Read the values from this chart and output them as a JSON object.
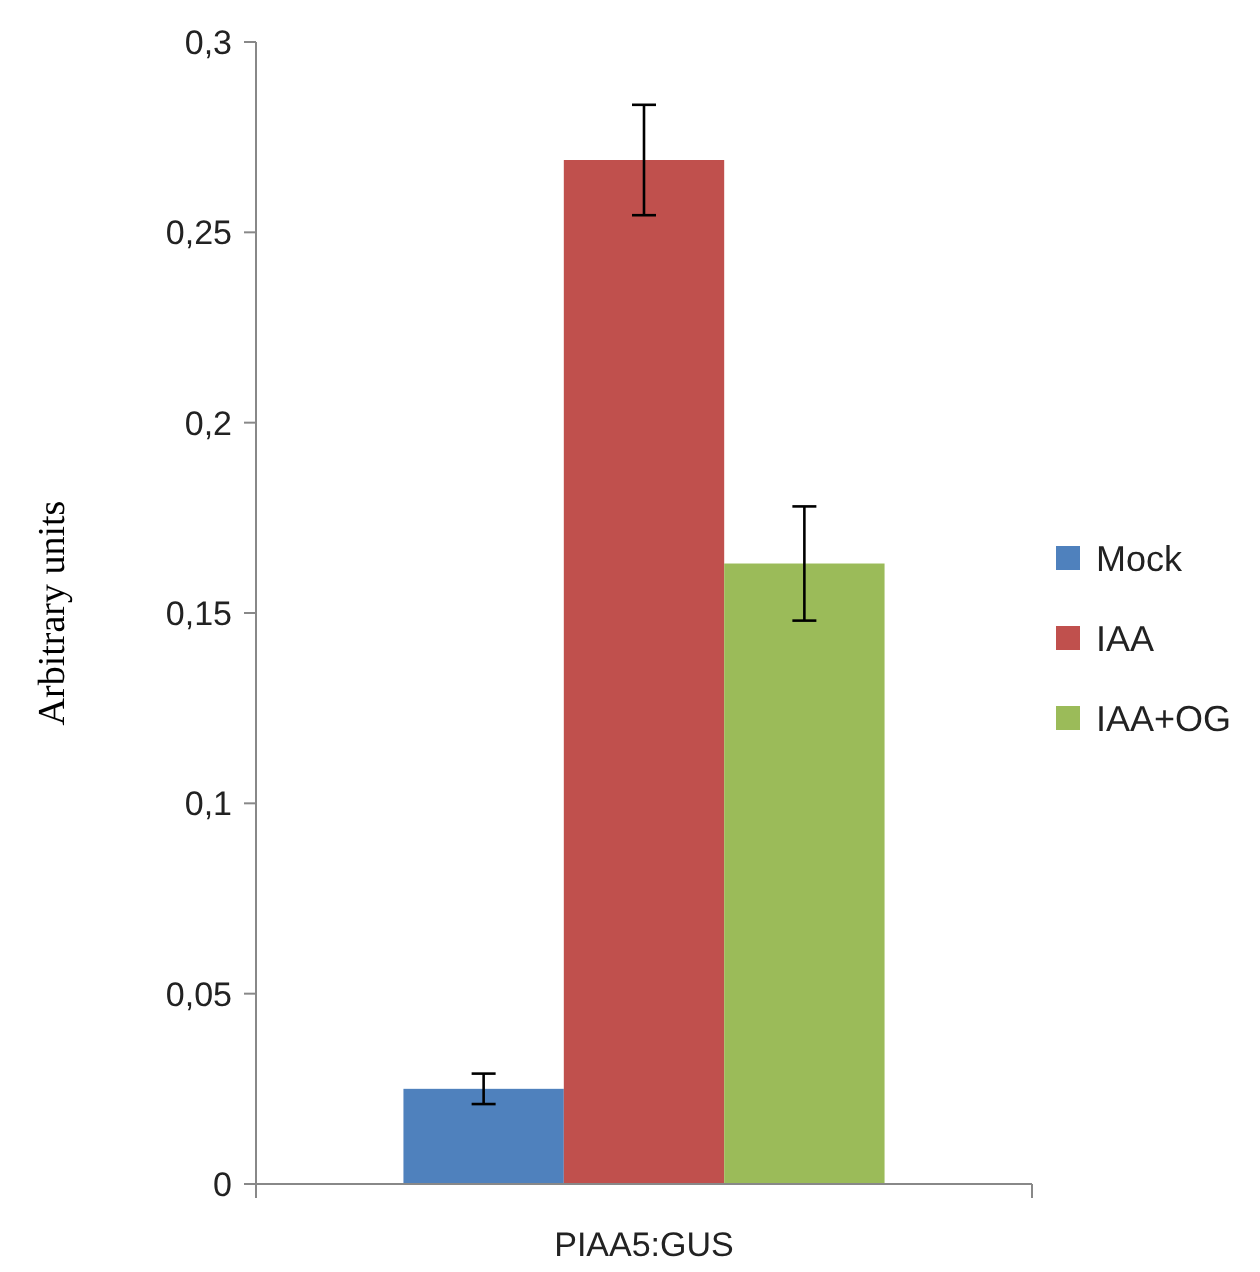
{
  "chart_data": {
    "type": "bar",
    "ylabel": "Arbitrary units",
    "categories": [
      "PIAA5:GUS"
    ],
    "series": [
      {
        "name": "Mock",
        "color": "#4f81bd",
        "values": [
          0.025
        ],
        "errors": [
          0.004
        ]
      },
      {
        "name": "IAA",
        "color": "#c0504d",
        "values": [
          0.269
        ],
        "errors": [
          0.0145
        ]
      },
      {
        "name": "IAA+OG",
        "color": "#9bbb59",
        "values": [
          0.163
        ],
        "errors": [
          0.015
        ]
      }
    ],
    "ylim": [
      0,
      0.3
    ],
    "yticks": [
      0,
      {
        "value": 0.05,
        "label": "0,05"
      },
      {
        "value": 0.1,
        "label": "0,1"
      },
      {
        "value": 0.15,
        "label": "0,15"
      },
      {
        "value": 0.2,
        "label": "0,2"
      },
      {
        "value": 0.25,
        "label": "0,25"
      },
      {
        "value": 0.3,
        "label": "0,3"
      }
    ],
    "grid": false,
    "legend": "right"
  }
}
